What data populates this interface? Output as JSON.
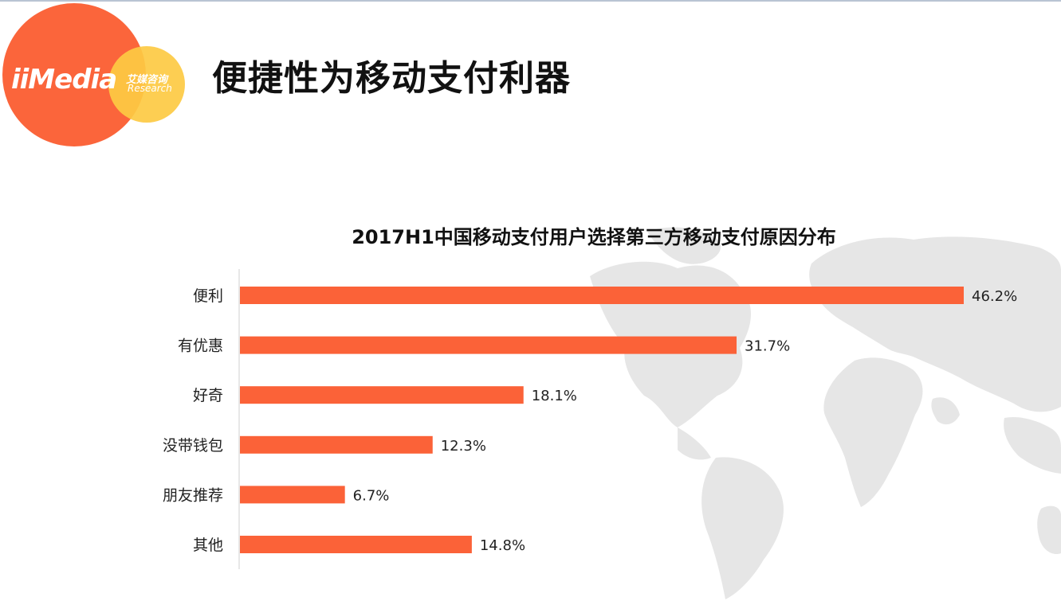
{
  "header": {
    "title": "便捷性为移动支付利器",
    "logo": {
      "mark_text": "iiMedia",
      "cn_text": "艾媒咨询",
      "en_text": "Research",
      "primary_color": "#fb653b",
      "secondary_color": "#fdca43"
    }
  },
  "chart_data": {
    "type": "bar",
    "orientation": "horizontal",
    "title": "2017H1中国移动支付用户选择第三方移动支付原因分布",
    "xlabel": "",
    "ylabel": "",
    "categories": [
      "便利",
      "有优惠",
      "好奇",
      "没带钱包",
      "朋友推荐",
      "其他"
    ],
    "values": [
      46.2,
      31.7,
      18.1,
      12.3,
      6.7,
      14.8
    ],
    "value_labels": [
      "46.2%",
      "31.7%",
      "18.1%",
      "12.3%",
      "6.7%",
      "14.8%"
    ],
    "unit": "%",
    "xlim": [
      0,
      46.2
    ],
    "grid": false,
    "legend": "none",
    "bar_color": "#fb6238"
  }
}
